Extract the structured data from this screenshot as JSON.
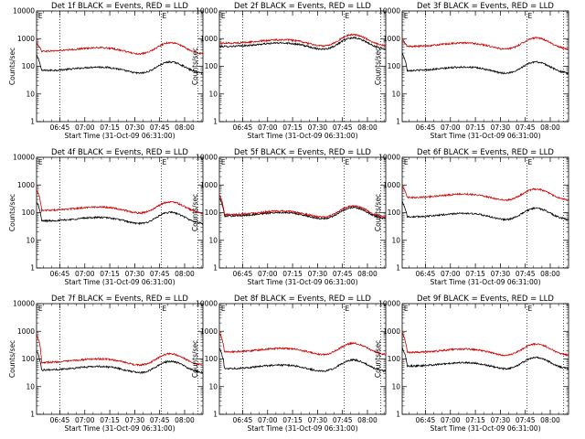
{
  "chart_data": [
    {
      "type": "line",
      "title": "Det 1f BLACK = Events, RED = LLD",
      "xlabel": "Start Time (31-Oct-09 06:31:00)",
      "ylabel": "Counts/sec",
      "xlim": [
        "06:31",
        "08:11"
      ],
      "ylim": [
        1,
        10000
      ],
      "yscale": "log",
      "x_ticks": [
        "06:45",
        "07:00",
        "07:15",
        "07:30",
        "07:45",
        "08:00"
      ],
      "y_ticks": [
        "1",
        "10",
        "100",
        "1000",
        "10000"
      ],
      "vlines": [
        "06:45",
        "07:46",
        "08:08"
      ],
      "marker_label": "E",
      "series": [
        {
          "color": "#000000",
          "base": 70,
          "start": 250
        },
        {
          "color": "#cc0000",
          "base": 350,
          "start": 700
        }
      ]
    },
    {
      "type": "line",
      "title": "Det 2f BLACK = Events, RED = LLD",
      "xlabel": "Start Time (31-Oct-09 06:31:00)",
      "ylabel": "Counts/sec",
      "xlim": [
        "06:31",
        "08:11"
      ],
      "ylim": [
        1,
        10000
      ],
      "yscale": "log",
      "x_ticks": [
        "06:45",
        "07:00",
        "07:15",
        "07:30",
        "07:45",
        "08:00"
      ],
      "y_ticks": [
        "1",
        "10",
        "100",
        "1000",
        "10000"
      ],
      "vlines": [
        "06:45",
        "07:46",
        "08:08"
      ],
      "marker_label": "E",
      "series": [
        {
          "color": "#000000",
          "base": 520,
          "start": 520
        },
        {
          "color": "#cc0000",
          "base": 680,
          "start": 680
        }
      ]
    },
    {
      "type": "line",
      "title": "Det 3f BLACK = Events, RED = LLD",
      "xlabel": "Start Time (31-Oct-09 06:31:00)",
      "ylabel": "Counts/sec",
      "xlim": [
        "06:31",
        "08:11"
      ],
      "ylim": [
        1,
        10000
      ],
      "yscale": "log",
      "x_ticks": [
        "06:45",
        "07:00",
        "07:15",
        "07:30",
        "07:45",
        "08:00"
      ],
      "y_ticks": [
        "1",
        "10",
        "100",
        "1000",
        "10000"
      ],
      "vlines": [
        "06:45",
        "07:46",
        "08:08"
      ],
      "marker_label": "E",
      "series": [
        {
          "color": "#000000",
          "base": 70,
          "start": 300
        },
        {
          "color": "#cc0000",
          "base": 520,
          "start": 900
        }
      ]
    },
    {
      "type": "line",
      "title": "Det 4f BLACK = Events, RED = LLD",
      "xlabel": "Start Time (31-Oct-09 06:31:00)",
      "ylabel": "Counts/sec",
      "xlim": [
        "06:31",
        "08:11"
      ],
      "ylim": [
        1,
        10000
      ],
      "yscale": "log",
      "x_ticks": [
        "06:45",
        "07:00",
        "07:15",
        "07:30",
        "07:45",
        "08:00"
      ],
      "y_ticks": [
        "1",
        "10",
        "100",
        "1000",
        "10000"
      ],
      "vlines": [
        "06:45",
        "07:46",
        "08:08"
      ],
      "marker_label": "E",
      "series": [
        {
          "color": "#000000",
          "base": 50,
          "start": 250
        },
        {
          "color": "#cc0000",
          "base": 120,
          "start": 700
        }
      ]
    },
    {
      "type": "line",
      "title": "Det 5f BLACK = Events, RED = LLD",
      "xlabel": "Start Time (31-Oct-09 06:31:00)",
      "ylabel": "Counts/sec",
      "xlim": [
        "06:31",
        "08:11"
      ],
      "ylim": [
        1,
        10000
      ],
      "yscale": "log",
      "x_ticks": [
        "06:45",
        "07:00",
        "07:15",
        "07:30",
        "07:45",
        "08:00"
      ],
      "y_ticks": [
        "1",
        "10",
        "100",
        "1000",
        "10000"
      ],
      "vlines": [
        "06:45",
        "07:46",
        "08:08"
      ],
      "marker_label": "E",
      "series": [
        {
          "color": "#000000",
          "base": 75,
          "start": 350
        },
        {
          "color": "#cc0000",
          "base": 85,
          "start": 450
        }
      ]
    },
    {
      "type": "line",
      "title": "Det 6f BLACK = Events, RED = LLD",
      "xlabel": "Start Time (31-Oct-09 06:31:00)",
      "ylabel": "Counts/sec",
      "xlim": [
        "06:31",
        "08:11"
      ],
      "ylim": [
        1,
        10000
      ],
      "yscale": "log",
      "x_ticks": [
        "06:45",
        "07:00",
        "07:15",
        "07:30",
        "07:45",
        "08:00"
      ],
      "y_ticks": [
        "1",
        "10",
        "100",
        "1000",
        "10000"
      ],
      "vlines": [
        "06:45",
        "07:46",
        "08:08"
      ],
      "marker_label": "E",
      "series": [
        {
          "color": "#000000",
          "base": 70,
          "start": 250
        },
        {
          "color": "#cc0000",
          "base": 350,
          "start": 900
        }
      ]
    },
    {
      "type": "line",
      "title": "Det 7f BLACK = Events, RED = LLD",
      "xlabel": "Start Time (31-Oct-09 06:31:00)",
      "ylabel": "Counts/sec",
      "xlim": [
        "06:31",
        "08:11"
      ],
      "ylim": [
        1,
        10000
      ],
      "yscale": "log",
      "x_ticks": [
        "06:45",
        "07:00",
        "07:15",
        "07:30",
        "07:45",
        "08:00"
      ],
      "y_ticks": [
        "1",
        "10",
        "100",
        "1000",
        "10000"
      ],
      "vlines": [
        "06:45",
        "07:46",
        "08:08"
      ],
      "marker_label": "E",
      "series": [
        {
          "color": "#000000",
          "base": 40,
          "start": 200
        },
        {
          "color": "#cc0000",
          "base": 75,
          "start": 800
        }
      ]
    },
    {
      "type": "line",
      "title": "Det 8f BLACK = Events, RED = LLD",
      "xlabel": "Start Time (31-Oct-09 06:31:00)",
      "ylabel": "Counts/sec",
      "xlim": [
        "06:31",
        "08:11"
      ],
      "ylim": [
        1,
        10000
      ],
      "yscale": "log",
      "x_ticks": [
        "06:45",
        "07:00",
        "07:15",
        "07:30",
        "07:45",
        "08:00"
      ],
      "y_ticks": [
        "1",
        "10",
        "100",
        "1000",
        "10000"
      ],
      "vlines": [
        "06:45",
        "07:46",
        "08:08"
      ],
      "marker_label": "E",
      "series": [
        {
          "color": "#000000",
          "base": 45,
          "start": 250
        },
        {
          "color": "#cc0000",
          "base": 180,
          "start": 900
        }
      ]
    },
    {
      "type": "line",
      "title": "Det 9f BLACK = Events, RED = LLD",
      "xlabel": "Start Time (31-Oct-09 06:31:00)",
      "ylabel": "Counts/sec",
      "xlim": [
        "06:31",
        "08:11"
      ],
      "ylim": [
        1,
        10000
      ],
      "yscale": "log",
      "x_ticks": [
        "06:45",
        "07:00",
        "07:15",
        "07:30",
        "07:45",
        "08:00"
      ],
      "y_ticks": [
        "1",
        "10",
        "100",
        "1000",
        "10000"
      ],
      "vlines": [
        "06:45",
        "07:46",
        "08:08"
      ],
      "marker_label": "E",
      "series": [
        {
          "color": "#000000",
          "base": 55,
          "start": 250
        },
        {
          "color": "#cc0000",
          "base": 170,
          "start": 900
        }
      ]
    }
  ]
}
